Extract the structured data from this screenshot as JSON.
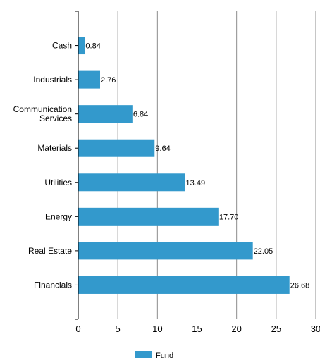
{
  "chart_data": {
    "type": "bar",
    "orientation": "horizontal",
    "categories": [
      "Cash",
      "Industrials",
      "Communication Services",
      "Materials",
      "Utilities",
      "Energy",
      "Real Estate",
      "Financials"
    ],
    "category_label_lines": [
      [
        "Cash"
      ],
      [
        "Industrials"
      ],
      [
        "Communication",
        "Services"
      ],
      [
        "Materials"
      ],
      [
        "Utilities"
      ],
      [
        "Energy"
      ],
      [
        "Real Estate"
      ],
      [
        "Financials"
      ]
    ],
    "series": [
      {
        "name": "Fund",
        "color": "#3399cc",
        "values": [
          0.84,
          2.76,
          6.84,
          9.64,
          13.49,
          17.7,
          22.05,
          26.68
        ],
        "value_labels": [
          "0.84",
          "2.76",
          "6.84",
          "9.64",
          "13.49",
          "17.70",
          "22.05",
          "26.68"
        ]
      }
    ],
    "xlim": [
      0,
      30
    ],
    "xticks": [
      0,
      5,
      10,
      15,
      20,
      25,
      30
    ],
    "xtick_labels": [
      "0",
      "5",
      "10",
      "15",
      "20",
      "25",
      "30"
    ],
    "grid": "vertical",
    "legend": "bottom-center"
  }
}
